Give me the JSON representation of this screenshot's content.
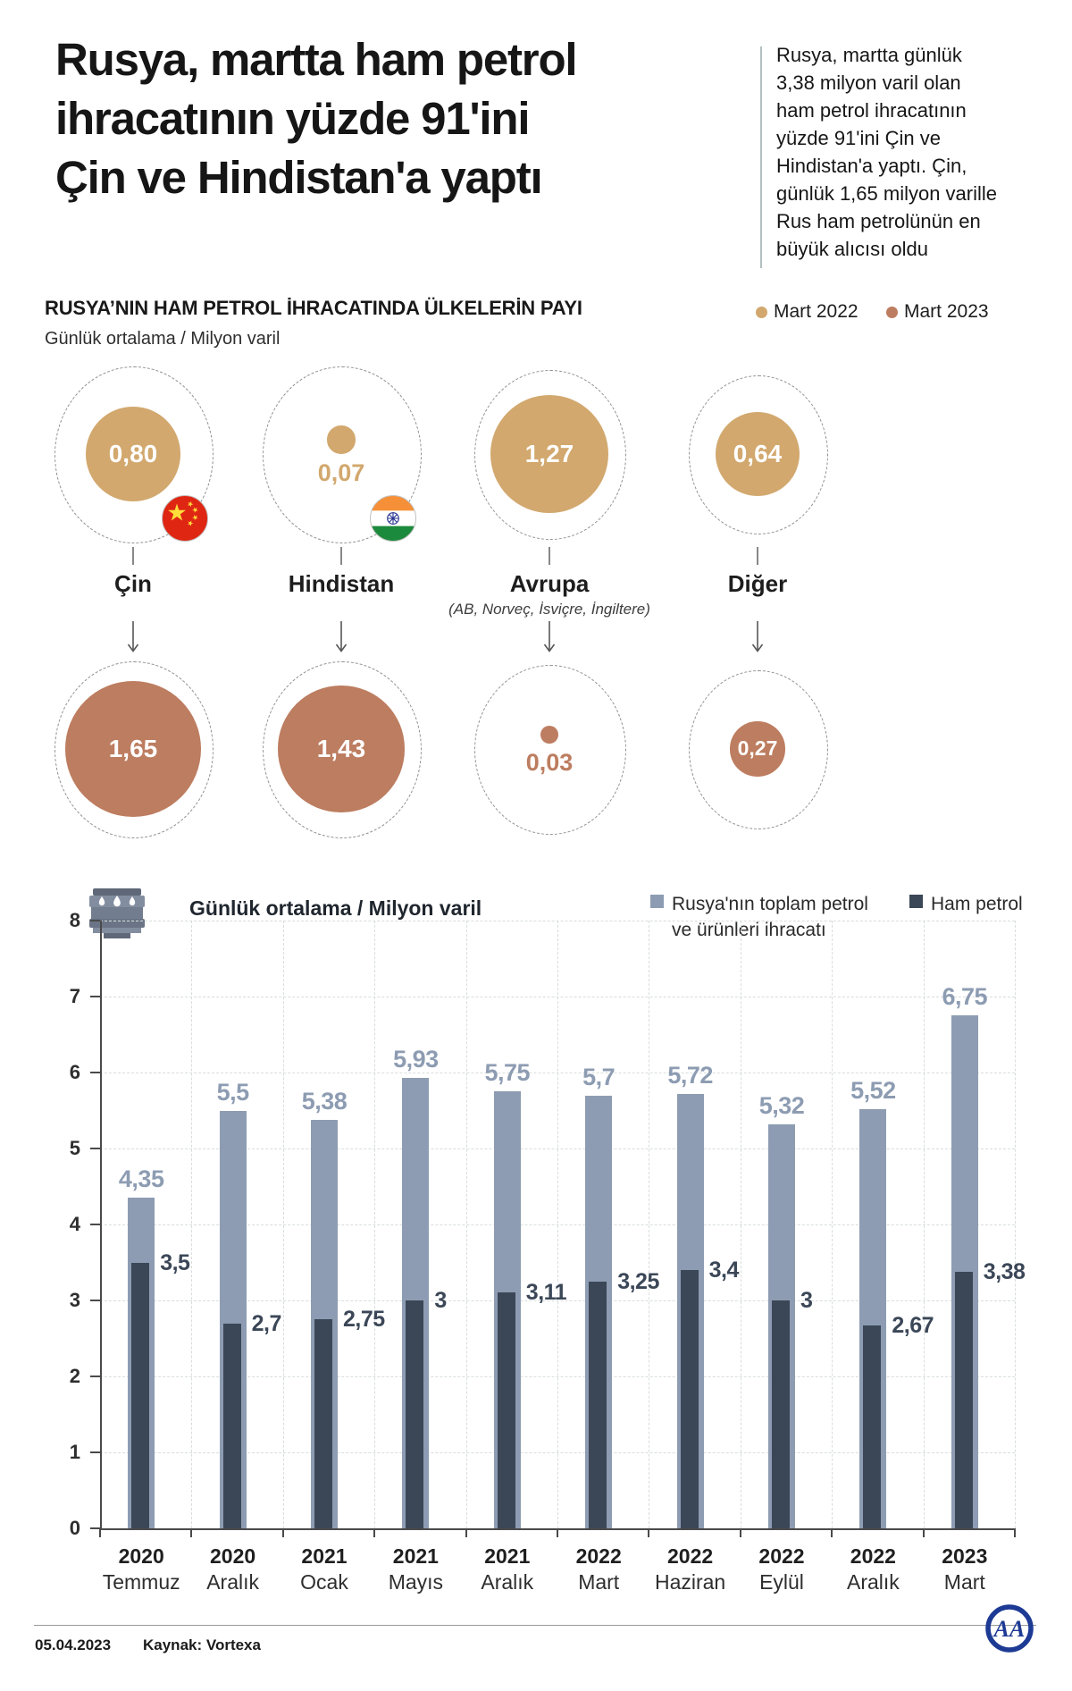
{
  "header": {
    "title_lines": [
      "Rusya, martta ham petrol",
      "ihracatının yüzde 91'ini",
      "Çin ve Hindistan'a yaptı"
    ],
    "summary": "Rusya, martta günlük 3,38 milyon varil olan ham petrol ihracatının yüzde 91'ini Çin ve Hindistan'a yaptı. Çin, günlük 1,65 milyon varille Rus ham petrolünün en büyük alıcısı oldu"
  },
  "colors": {
    "mart2022": "#d2a86e",
    "mart2023": "#bd7d60",
    "total_bar": "#8d9cb2",
    "ham_bar": "#3b4757",
    "axis": "#4a4a4a",
    "grid": "#d9dddd",
    "logo_navy": "#1d3a94"
  },
  "chart_data": [
    {
      "type": "bubble",
      "title": "RUSYA’NIN HAM PETROL İHRACATINDA ÜLKELERİN PAYI",
      "subtitle": "Günlük ortalama / Milyon varil",
      "categories": [
        "Çin",
        "Hindistan",
        "Avrupa",
        "Diğer"
      ],
      "category_notes": [
        "",
        "",
        "(AB, Norveç, İsviçre, İngiltere)",
        ""
      ],
      "flags": [
        "china",
        "india",
        "",
        ""
      ],
      "legend_position": "top-right",
      "series": [
        {
          "name": "Mart 2022",
          "color": "#d2a86e",
          "values": [
            0.8,
            0.07,
            1.27,
            0.64
          ],
          "labels": [
            "0,80",
            "0,07",
            "1,27",
            "0,64"
          ]
        },
        {
          "name": "Mart 2023",
          "color": "#bd7d60",
          "values": [
            1.65,
            1.43,
            0.03,
            0.27
          ],
          "labels": [
            "1,65",
            "1,43",
            "0,03",
            "0,27"
          ]
        }
      ]
    },
    {
      "type": "bar",
      "title": "Günlük ortalama / Milyon varil",
      "categories": [
        [
          "2020",
          "Temmuz"
        ],
        [
          "2020",
          "Aralık"
        ],
        [
          "2021",
          "Ocak"
        ],
        [
          "2021",
          "Mayıs"
        ],
        [
          "2021",
          "Aralık"
        ],
        [
          "2022",
          "Mart"
        ],
        [
          "2022",
          "Haziran"
        ],
        [
          "2022",
          "Eylül"
        ],
        [
          "2022",
          "Aralık"
        ],
        [
          "2023",
          "Mart"
        ]
      ],
      "series": [
        {
          "name": "Rusya'nın toplam petrol ve ürünleri ihracatı",
          "color": "#8d9cb2",
          "values": [
            4.35,
            5.5,
            5.38,
            5.93,
            5.75,
            5.7,
            5.72,
            5.32,
            5.52,
            6.75
          ],
          "labels": [
            "4,35",
            "5,5",
            "5,38",
            "5,93",
            "5,75",
            "5,7",
            "5,72",
            "5,32",
            "5,52",
            "6,75"
          ]
        },
        {
          "name": "Ham petrol",
          "color": "#3b4757",
          "values": [
            3.5,
            2.7,
            2.75,
            3,
            3.11,
            3.25,
            3.4,
            3,
            2.67,
            3.38
          ],
          "labels": [
            "3,5",
            "2,7",
            "2,75",
            "3",
            "3,11",
            "3,25",
            "3,4",
            "3",
            "2,67",
            "3,38"
          ]
        }
      ],
      "ylim": [
        0,
        8
      ],
      "yticks": [
        0,
        1,
        2,
        3,
        4,
        5,
        6,
        7,
        8
      ],
      "grid": "dashed",
      "legend_position": "top-right"
    }
  ],
  "footer": {
    "date": "05.04.2023",
    "source": "Kaynak: Vortexa",
    "logo": "AA"
  }
}
